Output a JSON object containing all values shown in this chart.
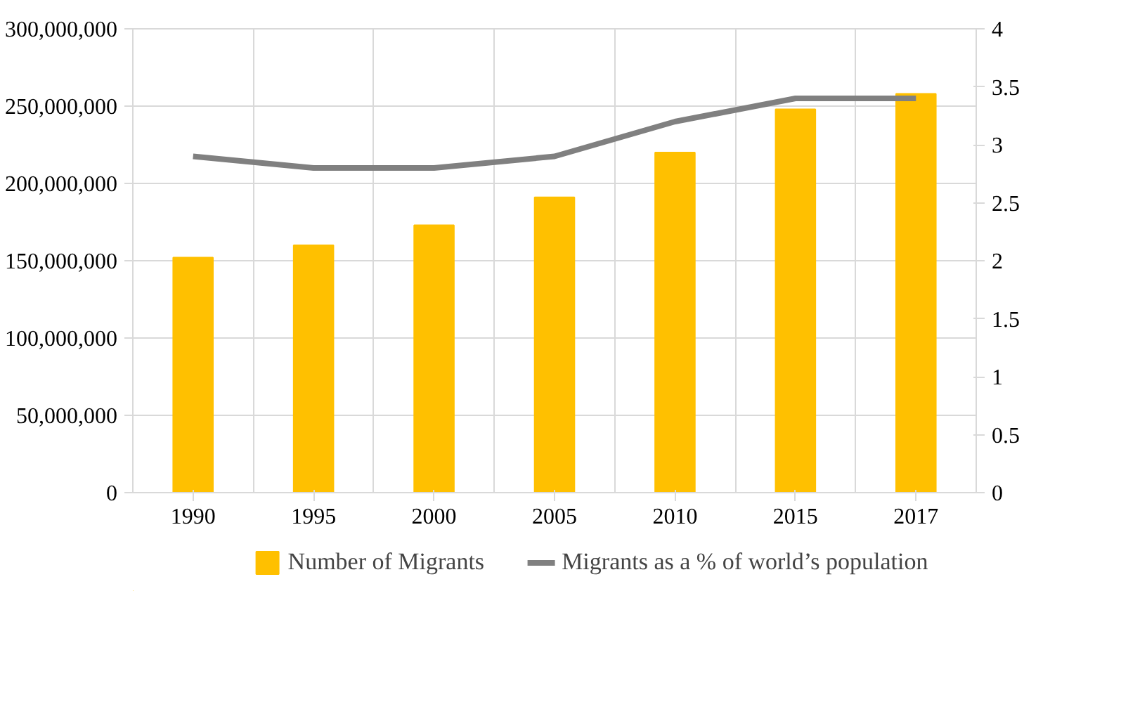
{
  "chart_data": {
    "type": "bar",
    "categories": [
      "1990",
      "1995",
      "2000",
      "2005",
      "2010",
      "2015",
      "2017"
    ],
    "series": [
      {
        "name": "Number of Migrants",
        "color": "#ffc000",
        "values": [
          152000000,
          160000000,
          173000000,
          191000000,
          220000000,
          248000000,
          258000000
        ]
      },
      {
        "name": "Migrants as a % of world’s population",
        "type": "line",
        "axis": "y2",
        "color": "#808080",
        "values": [
          2.9,
          2.8,
          2.8,
          2.9,
          3.2,
          3.4,
          3.4
        ]
      }
    ],
    "ylim": [
      0,
      300000000
    ],
    "yticks": [
      {
        "value": 0,
        "label": "0"
      },
      {
        "value": 50000000,
        "label": "50,000,000"
      },
      {
        "value": 100000000,
        "label": "100,000,000"
      },
      {
        "value": 150000000,
        "label": "150,000,000"
      },
      {
        "value": 200000000,
        "label": "200,000,000"
      },
      {
        "value": 250000000,
        "label": "250,000,000"
      },
      {
        "value": 300000000,
        "label": "300,000,000"
      }
    ],
    "y2lim": [
      0,
      4
    ],
    "y2ticks": [
      0,
      0.5,
      1,
      1.5,
      2,
      2.5,
      3,
      3.5,
      4
    ],
    "grid": true,
    "legend": "bottom"
  }
}
